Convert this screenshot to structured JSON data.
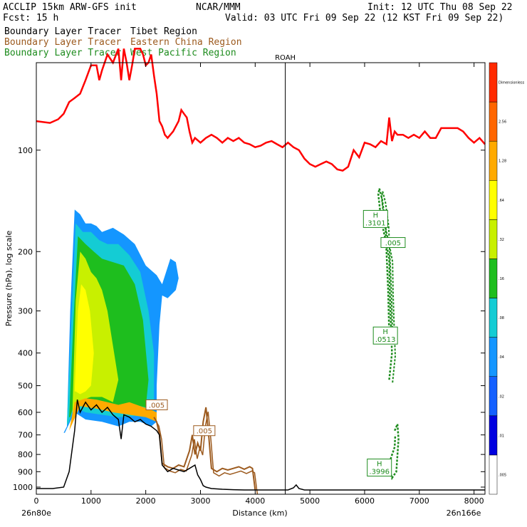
{
  "header": {
    "line1_left": "ACCLIP 15km ARW-GFS init",
    "line1_mid": "NCAR/MMM",
    "line1_right": "Init: 12 UTC Thu 08 Sep 22",
    "line2_left": "Fcst:   15 h",
    "line2_right": "Valid: 03 UTC Fri 09 Sep 22 (12 KST Fri 09 Sep 22)",
    "legend": [
      {
        "prefix": "Boundary Layer Tracer",
        "region": "Tibet Region",
        "color": "#000000"
      },
      {
        "prefix": "Boundary Layer Tracer",
        "region": "Eastern China Region",
        "color": "#9c5a1e"
      },
      {
        "prefix": "Boundary Layer Tracer",
        "region": "West Pacific Region",
        "color": "#1e8c1e"
      }
    ]
  },
  "chart_data": {
    "type": "area",
    "xlabel": "Distance (km)",
    "ylabel": "Pressure (hPa), log scale",
    "xlim": [
      0,
      8200
    ],
    "ylim": [
      1050,
      55
    ],
    "y_log_scale": true,
    "x_ticks": [
      0,
      1000,
      2000,
      3000,
      4000,
      5000,
      6000,
      7000,
      8000
    ],
    "y_ticks": [
      100,
      200,
      300,
      400,
      500,
      600,
      700,
      800,
      900,
      1000
    ],
    "x_start_label": "26n80e",
    "x_end_label": "26n166e",
    "station": {
      "name": "ROAH",
      "x": 4550
    },
    "colorbar": {
      "levels": [
        ".005",
        ".01",
        ".02",
        ".04",
        ".08",
        ".16",
        ".32",
        ".64",
        "1.28",
        "2.56",
        "Dimensionless"
      ],
      "colors": [
        "#ffffff",
        "#0000e0",
        "#1460ff",
        "#1496ff",
        "#14ccd4",
        "#1ebe1e",
        "#c8f000",
        "#ffff00",
        "#ffaa00",
        "#ff6600",
        "#ff2a00"
      ]
    },
    "tropopause_red": {
      "color": "#ff0000",
      "x": [
        0,
        250,
        400,
        500,
        600,
        700,
        800,
        900,
        1000,
        1100,
        1150,
        1200,
        1300,
        1400,
        1500,
        1550,
        1600,
        1650,
        1700,
        1750,
        1800,
        1900,
        1950,
        2000,
        2050,
        2100,
        2150,
        2200,
        2250,
        2300,
        2350,
        2400,
        2500,
        2600,
        2650,
        2700,
        2750,
        2800,
        2850,
        2900,
        3000,
        3100,
        3200,
        3300,
        3400,
        3500,
        3600,
        3700,
        3800,
        3900,
        4000,
        4100,
        4200,
        4300,
        4400,
        4500,
        4600,
        4700,
        4800,
        4900,
        5000,
        5100,
        5200,
        5300,
        5400,
        5500,
        5600,
        5700,
        5800,
        5900,
        6000,
        6100,
        6200,
        6300,
        6400,
        6450,
        6500,
        6550,
        6600,
        6700,
        6800,
        6900,
        7000,
        7100,
        7200,
        7300,
        7400,
        7500,
        7600,
        7700,
        7800,
        7900,
        8000,
        8100,
        8200
      ],
      "y": [
        82,
        83,
        81,
        78,
        72,
        70,
        68,
        62,
        56,
        56,
        62,
        58,
        52,
        55,
        50,
        62,
        50,
        55,
        62,
        56,
        50,
        50,
        52,
        56,
        55,
        52,
        60,
        68,
        82,
        85,
        90,
        92,
        88,
        82,
        76,
        78,
        80,
        88,
        95,
        92,
        95,
        92,
        90,
        92,
        95,
        92,
        94,
        92,
        95,
        96,
        98,
        97,
        95,
        94,
        96,
        98,
        95,
        98,
        100,
        106,
        110,
        112,
        110,
        108,
        110,
        114,
        115,
        112,
        100,
        105,
        95,
        96,
        98,
        94,
        96,
        80,
        94,
        88,
        90,
        90,
        92,
        90,
        92,
        88,
        92,
        92,
        86,
        86,
        86,
        86,
        88,
        92,
        95,
        92,
        96
      ]
    },
    "terrain_black": {
      "color": "#000000",
      "x": [
        0,
        300,
        500,
        600,
        700,
        750,
        800,
        900,
        1000,
        1100,
        1200,
        1300,
        1400,
        1500,
        1550,
        1600,
        1700,
        1800,
        1900,
        2000,
        2100,
        2200,
        2250,
        2300,
        2400,
        2500,
        2600,
        2700,
        2800,
        2900,
        2950,
        3000,
        3050,
        3100,
        3200,
        3400,
        3600,
        3800,
        4000,
        4200,
        4400,
        4600,
        4700,
        4750,
        4800,
        4900,
        5000,
        5500,
        6000,
        6500,
        7000,
        7500,
        8000,
        8200
      ],
      "y": [
        1010,
        1010,
        1000,
        900,
        680,
        550,
        600,
        560,
        590,
        570,
        600,
        580,
        610,
        630,
        720,
        610,
        620,
        640,
        630,
        650,
        660,
        680,
        700,
        860,
        900,
        880,
        890,
        900,
        880,
        860,
        920,
        950,
        990,
        1000,
        1010,
        1015,
        1018,
        1020,
        1020,
        1020,
        1020,
        1020,
        1005,
        985,
        1010,
        1020,
        1020,
        1020,
        1020,
        1020,
        1020,
        1020,
        1020,
        1020
      ]
    },
    "east_china_brown": {
      "color": "#9c5a1e",
      "x": [
        2150,
        2200,
        2250,
        2300,
        2400,
        2500,
        2600,
        2700,
        2800,
        2850,
        2900,
        2950,
        3000,
        3050,
        3100,
        3150,
        3200,
        3300,
        3400,
        3500,
        3600,
        3700,
        3800,
        3900,
        3950,
        4000
      ],
      "y": [
        620,
        640,
        700,
        850,
        870,
        880,
        860,
        870,
        780,
        700,
        800,
        740,
        780,
        640,
        580,
        700,
        880,
        900,
        880,
        890,
        880,
        870,
        885,
        870,
        880,
        1020
      ],
      "labels": [
        {
          "x": 3070,
          "p": 680,
          "text": ".005"
        },
        {
          "x": 2200,
          "p": 570,
          "text": ".005"
        }
      ]
    },
    "west_pacific_green": {
      "color": "#1e8c1e",
      "upper": {
        "x": [
          6450,
          6500,
          6480,
          6460,
          6450,
          6400,
          6350,
          6300,
          6250,
          6270,
          6320,
          6380,
          6400,
          6430,
          6450
        ],
        "y": [
          480,
          400,
          330,
          260,
          210,
          190,
          175,
          160,
          135,
          130,
          140,
          165,
          200,
          260,
          350
        ]
      },
      "lower": {
        "x": [
          6550,
          6600,
          6620,
          6580,
          6500,
          6450,
          6480,
          6550,
          6560
        ],
        "y": [
          680,
          650,
          720,
          900,
          940,
          880,
          820,
          760,
          700
        ]
      },
      "markers": [
        {
          "letter": "H",
          "value": ".3101",
          "x": 6200,
          "p": 160
        },
        {
          "letter": "",
          "value": ".005",
          "x": 6520,
          "p": 188
        },
        {
          "letter": "H",
          "value": ".0513",
          "x": 6380,
          "p": 355
        },
        {
          "letter": "H",
          "value": ".3996",
          "x": 6270,
          "p": 875
        }
      ]
    },
    "tibet_tracer_field": {
      "x_range": [
        500,
        2600
      ],
      "p_range": [
        140,
        690
      ],
      "peak_value": "0.32-1.28"
    }
  }
}
